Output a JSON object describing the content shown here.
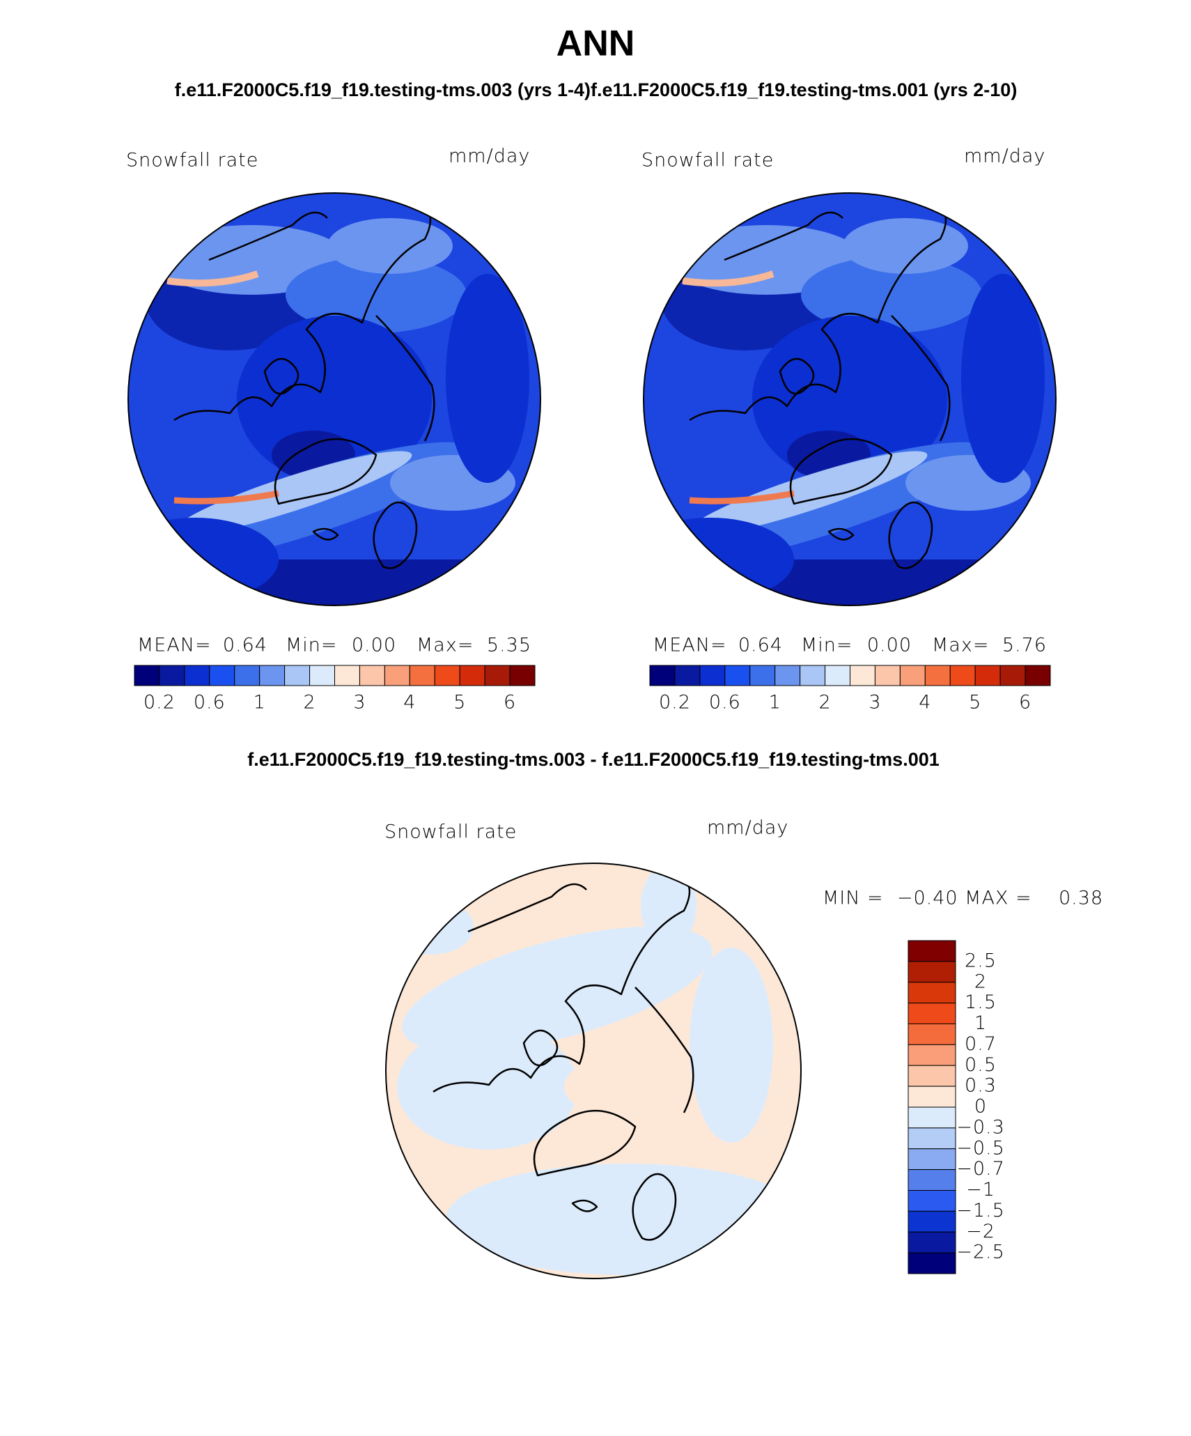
{
  "title": "ANN",
  "subtitle_left": "f.e11.F2000C5.f19_f19.testing-tms.003 (yrs 1-4)",
  "subtitle_right": "f.e11.F2000C5.f19_f19.testing-tms.001 (yrs 2-10)",
  "panels": [
    {
      "label": "Snowfall rate",
      "units": "mm/day",
      "mean_label": "MEAN=",
      "mean": "0.64",
      "min_label": "Min=",
      "min": "0.00",
      "max_label": "Max=",
      "max": "5.35"
    },
    {
      "label": "Snowfall rate",
      "units": "mm/day",
      "mean_label": "MEAN=",
      "mean": "0.64",
      "min_label": "Min=",
      "min": "0.00",
      "max_label": "Max=",
      "max": "5.76"
    }
  ],
  "colorbar": {
    "labels": [
      "0.2",
      "0.6",
      "1",
      "2",
      "3",
      "4",
      "5",
      "6"
    ],
    "colors": [
      "#00007a",
      "#0a1aa0",
      "#0b2fd0",
      "#1a50f0",
      "#3c70ea",
      "#6c95f0",
      "#a9c6f6",
      "#dcebfb",
      "#fde8d8",
      "#fcc6aa",
      "#f9a07a",
      "#f5703f",
      "#ee4a1a",
      "#d42c0a",
      "#a81a08",
      "#780000"
    ]
  },
  "diff": {
    "title": "f.e11.F2000C5.f19_f19.testing-tms.003 - f.e11.F2000C5.f19_f19.testing-tms.001",
    "label": "Snowfall rate",
    "units": "mm/day",
    "stats": "MIN =  −0.40 MAX =    0.38",
    "colorbar": {
      "labels": [
        "2.5",
        "2",
        "1.5",
        "1",
        "0.7",
        "0.5",
        "0.3",
        "0",
        "−0.3",
        "−0.5",
        "−0.7",
        "−1",
        "−1.5",
        "−2",
        "−2.5"
      ],
      "colors": [
        "#800000",
        "#b01e04",
        "#d8380a",
        "#ee4a1a",
        "#f56c3c",
        "#f99e78",
        "#fcc6aa",
        "#fde8d8",
        "#dcebfb",
        "#b3cdf6",
        "#8aaaf2",
        "#5580ec",
        "#2a5af0",
        "#0b34d0",
        "#0a1aa0",
        "#00007a"
      ]
    }
  }
}
